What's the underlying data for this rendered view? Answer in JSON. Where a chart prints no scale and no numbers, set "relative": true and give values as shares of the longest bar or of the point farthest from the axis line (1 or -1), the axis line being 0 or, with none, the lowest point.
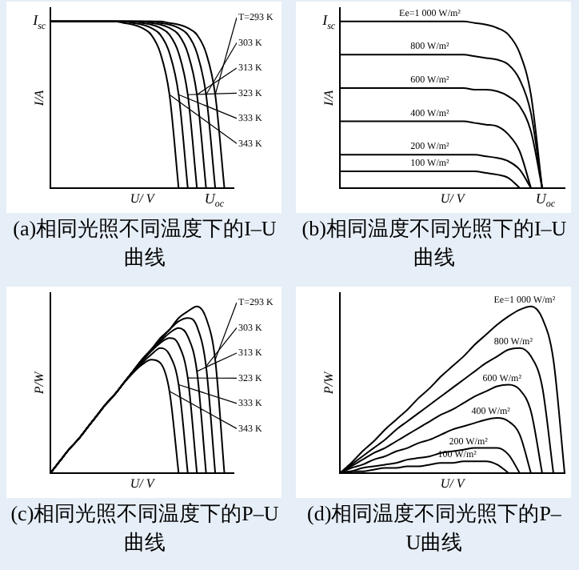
{
  "chart_data": [
    {
      "type": "line",
      "title": "(a)相同光照不同温度下的I–U曲线",
      "xlabel": "U/ V",
      "ylabel": "I/A",
      "relative": true,
      "legend": false,
      "grid": false,
      "marker": "none",
      "categories": [
        null,
        null,
        null,
        null,
        null,
        null,
        null,
        null,
        null,
        null,
        null,
        null,
        null,
        null,
        null,
        null,
        null,
        null,
        null,
        null,
        null
      ],
      "annotations": [
        "I$_{sc}$",
        "U$_{oc}$"
      ],
      "series": [
        {
          "name": "T=293 K",
          "color": "#000000",
          "values": [
            1,
            1,
            1,
            1,
            1,
            1,
            1,
            1,
            1,
            1,
            1,
            1,
            1,
            0.99,
            0.98,
            0.96,
            0.92,
            0.81,
            0.56,
            0,
            null
          ]
        },
        {
          "name": "303 K",
          "color": "#000000",
          "values": [
            1,
            1,
            1,
            1,
            1,
            1,
            1,
            1,
            1,
            1,
            1,
            1,
            0.99,
            0.98,
            0.96,
            0.92,
            0.81,
            0.56,
            0,
            null,
            null
          ]
        },
        {
          "name": "313 K",
          "color": "#000000",
          "values": [
            1,
            1,
            1,
            1,
            1,
            1,
            1,
            1,
            1,
            1,
            1,
            0.99,
            0.98,
            0.96,
            0.92,
            0.81,
            0.56,
            0,
            null,
            null,
            null
          ]
        },
        {
          "name": "323 K",
          "color": "#000000",
          "values": [
            1,
            1,
            1,
            1,
            1,
            1,
            1,
            1,
            1,
            1,
            0.99,
            0.98,
            0.96,
            0.92,
            0.81,
            0.56,
            0,
            null,
            null,
            null,
            null
          ]
        },
        {
          "name": "333 K",
          "color": "#000000",
          "values": [
            1,
            1,
            1,
            1,
            1,
            1,
            1,
            1,
            1,
            0.99,
            0.98,
            0.96,
            0.92,
            0.81,
            0.56,
            0,
            null,
            null,
            null,
            null,
            null
          ]
        },
        {
          "name": "343 K",
          "color": "#000000",
          "values": [
            1,
            1,
            1,
            1,
            1,
            1,
            1,
            1,
            0.99,
            0.98,
            0.96,
            0.92,
            0.81,
            0.56,
            0,
            null,
            null,
            null,
            null,
            null,
            null
          ]
        }
      ]
    },
    {
      "type": "line",
      "title": "(b)相同温度不同光照下的I–U曲线",
      "xlabel": "U/ V",
      "ylabel": "I/A",
      "relative": true,
      "legend": false,
      "grid": false,
      "marker": "none",
      "categories": [
        null,
        null,
        null,
        null,
        null,
        null,
        null,
        null,
        null,
        null,
        null,
        null,
        null,
        null,
        null,
        null,
        null,
        null,
        null,
        null,
        null
      ],
      "annotations": [
        "I$_{sc}$",
        "U$_{oc}$"
      ],
      "series": [
        {
          "name": "Ee=1 000 W/m²",
          "color": "#000000",
          "values": [
            1,
            1,
            1,
            1,
            1,
            1,
            1,
            1,
            1,
            1,
            1,
            1,
            0.99,
            0.98,
            0.96,
            0.92,
            0.81,
            0.56,
            0,
            null,
            null
          ]
        },
        {
          "name": "800 W/m²",
          "color": "#000000",
          "values": [
            0.8,
            0.8,
            0.8,
            0.8,
            0.8,
            0.8,
            0.8,
            0.8,
            0.8,
            0.8,
            0.8,
            0.8,
            0.79,
            0.78,
            0.77,
            0.74,
            0.65,
            0.45,
            0,
            null,
            null
          ]
        },
        {
          "name": "600 W/m²",
          "color": "#000000",
          "values": [
            0.6,
            0.6,
            0.6,
            0.6,
            0.6,
            0.6,
            0.6,
            0.6,
            0.6,
            0.6,
            0.6,
            0.6,
            0.59,
            0.59,
            0.58,
            0.55,
            0.49,
            0.34,
            0,
            null,
            null
          ]
        },
        {
          "name": "400 W/m²",
          "color": "#000000",
          "values": [
            0.4,
            0.4,
            0.4,
            0.4,
            0.4,
            0.4,
            0.4,
            0.4,
            0.4,
            0.4,
            0.4,
            0.4,
            0.39,
            0.38,
            0.37,
            0.32,
            0.22,
            0,
            null,
            null,
            null
          ]
        },
        {
          "name": "200 W/m²",
          "color": "#000000",
          "values": [
            0.2,
            0.2,
            0.2,
            0.2,
            0.2,
            0.2,
            0.2,
            0.2,
            0.2,
            0.2,
            0.2,
            0.2,
            0.2,
            0.19,
            0.18,
            0.16,
            0.11,
            0,
            null,
            null,
            null
          ]
        },
        {
          "name": "100 W/m²",
          "color": "#000000",
          "values": [
            0.1,
            0.1,
            0.1,
            0.1,
            0.1,
            0.1,
            0.1,
            0.1,
            0.1,
            0.1,
            0.1,
            0.1,
            0.1,
            0.09,
            0.08,
            0.06,
            0,
            null,
            null,
            null,
            null
          ]
        }
      ]
    },
    {
      "type": "line",
      "title": "(c)相同光照不同温度下的P–U曲线",
      "xlabel": "U/ V",
      "ylabel": "P/W",
      "relative": true,
      "legend": false,
      "grid": false,
      "marker": "none",
      "categories": [
        null,
        null,
        null,
        null,
        null,
        null,
        null,
        null,
        null,
        null,
        null,
        null,
        null,
        null,
        null,
        null,
        null,
        null,
        null,
        null,
        null
      ],
      "series": [
        {
          "name": "T=293 K",
          "color": "#000000",
          "values": [
            0,
            0.07,
            0.14,
            0.2,
            0.27,
            0.34,
            0.41,
            0.47,
            0.54,
            0.61,
            0.68,
            0.74,
            0.81,
            0.86,
            0.93,
            0.97,
            1,
            0.93,
            0.68,
            0,
            null
          ]
        },
        {
          "name": "303 K",
          "color": "#000000",
          "values": [
            0,
            0.07,
            0.14,
            0.2,
            0.27,
            0.34,
            0.41,
            0.47,
            0.54,
            0.61,
            0.68,
            0.74,
            0.8,
            0.86,
            0.91,
            0.93,
            0.88,
            0.64,
            0,
            null,
            null
          ]
        },
        {
          "name": "313 K",
          "color": "#000000",
          "values": [
            0,
            0.07,
            0.14,
            0.2,
            0.27,
            0.34,
            0.41,
            0.47,
            0.54,
            0.61,
            0.68,
            0.74,
            0.79,
            0.84,
            0.87,
            0.82,
            0.61,
            0,
            null,
            null,
            null
          ]
        },
        {
          "name": "323 K",
          "color": "#000000",
          "values": [
            0,
            0.07,
            0.14,
            0.2,
            0.27,
            0.34,
            0.41,
            0.47,
            0.54,
            0.61,
            0.67,
            0.73,
            0.78,
            0.81,
            0.77,
            0.57,
            0,
            null,
            null,
            null,
            null
          ]
        },
        {
          "name": "333 K",
          "color": "#000000",
          "values": [
            0,
            0.07,
            0.14,
            0.2,
            0.27,
            0.34,
            0.41,
            0.47,
            0.54,
            0.6,
            0.66,
            0.71,
            0.75,
            0.71,
            0.53,
            0,
            null,
            null,
            null,
            null,
            null
          ]
        },
        {
          "name": "343 K",
          "color": "#000000",
          "values": [
            0,
            0.07,
            0.14,
            0.2,
            0.27,
            0.34,
            0.41,
            0.47,
            0.54,
            0.6,
            0.65,
            0.68,
            0.66,
            0.49,
            0,
            null,
            null,
            null,
            null,
            null,
            null
          ]
        }
      ]
    },
    {
      "type": "line",
      "title": "(d)相同温度不同光照下的P–U曲线",
      "xlabel": "U/ V",
      "ylabel": "P/W",
      "relative": true,
      "legend": false,
      "grid": false,
      "marker": "none",
      "categories": [
        null,
        null,
        null,
        null,
        null,
        null,
        null,
        null,
        null,
        null,
        null,
        null,
        null,
        null,
        null,
        null,
        null,
        null,
        null,
        null,
        null
      ],
      "series": [
        {
          "name": "Ee=1 000 W/m²",
          "color": "#000000",
          "values": [
            0,
            0.06,
            0.13,
            0.19,
            0.26,
            0.32,
            0.38,
            0.45,
            0.51,
            0.58,
            0.64,
            0.7,
            0.77,
            0.83,
            0.89,
            0.94,
            0.98,
            1,
            0.93,
            0.68,
            0
          ]
        },
        {
          "name": "800 W/m²",
          "color": "#000000",
          "values": [
            0,
            0.05,
            0.1,
            0.15,
            0.2,
            0.26,
            0.31,
            0.36,
            0.41,
            0.46,
            0.51,
            0.56,
            0.61,
            0.66,
            0.7,
            0.74,
            0.75,
            0.7,
            0.52,
            0,
            null
          ]
        },
        {
          "name": "600 W/m²",
          "color": "#000000",
          "values": [
            0,
            0.04,
            0.08,
            0.12,
            0.15,
            0.19,
            0.23,
            0.27,
            0.31,
            0.35,
            0.38,
            0.42,
            0.46,
            0.49,
            0.52,
            0.53,
            0.5,
            0.37,
            0,
            null,
            null
          ]
        },
        {
          "name": "400 W/m²",
          "color": "#000000",
          "values": [
            0,
            0.03,
            0.05,
            0.08,
            0.1,
            0.13,
            0.15,
            0.18,
            0.2,
            0.23,
            0.26,
            0.28,
            0.3,
            0.32,
            0.33,
            0.31,
            0.23,
            0,
            null,
            null,
            null
          ]
        },
        {
          "name": "200 W/m²",
          "color": "#000000",
          "values": [
            0,
            0.01,
            0.03,
            0.04,
            0.05,
            0.06,
            0.08,
            0.09,
            0.1,
            0.12,
            0.13,
            0.14,
            0.15,
            0.15,
            0.15,
            0.11,
            0,
            null,
            null,
            null,
            null
          ]
        },
        {
          "name": "100 W/m²",
          "color": "#000000",
          "values": [
            0,
            0.01,
            0.01,
            0.02,
            0.03,
            0.03,
            0.04,
            0.04,
            0.05,
            0.06,
            0.06,
            0.07,
            0.07,
            0.07,
            0.05,
            0,
            null,
            null,
            null,
            null,
            null
          ]
        }
      ]
    }
  ]
}
